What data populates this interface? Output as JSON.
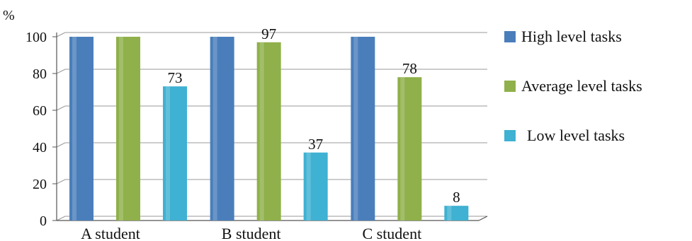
{
  "chart_data": {
    "type": "bar",
    "y_unit_label": "%",
    "categories": [
      "A student",
      "B student",
      "C student"
    ],
    "series": [
      {
        "name": "High level tasks",
        "color": "#4a7ebb",
        "values": [
          100,
          100,
          100
        ],
        "labels": [
          "",
          "",
          ""
        ]
      },
      {
        "name": "Average level tasks",
        "color": "#8fb04a",
        "values": [
          100,
          97,
          78
        ],
        "labels": [
          "",
          "97",
          "78"
        ]
      },
      {
        "name": "Low level tasks",
        "color": "#3fb1d2",
        "values": [
          73,
          37,
          8
        ],
        "labels": [
          "73",
          "37",
          "8"
        ]
      }
    ],
    "yticks": [
      0,
      20,
      40,
      60,
      80,
      100
    ],
    "ylim": [
      0,
      100
    ],
    "grid": true,
    "legend_position": "right"
  }
}
